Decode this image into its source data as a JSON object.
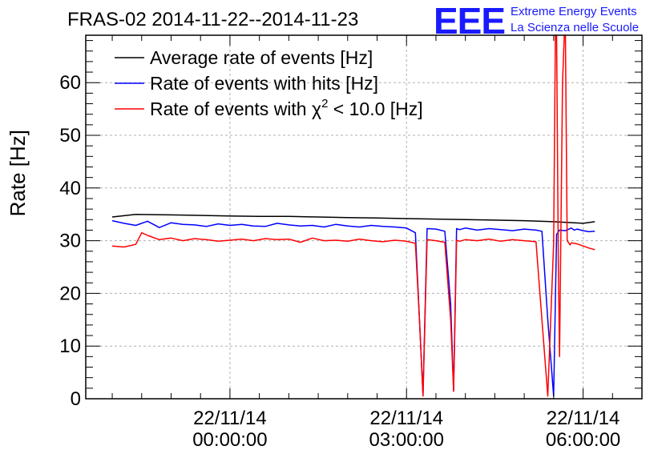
{
  "chart_data": {
    "type": "line",
    "title": "FRAS-02 2014-11-22--2014-11-23",
    "ylabel": "Rate [Hz]",
    "xlabel": "",
    "ylim": [
      0,
      69
    ],
    "yticks": [
      0,
      10,
      20,
      30,
      40,
      50,
      60
    ],
    "xlim": [
      -2.45,
      7.0
    ],
    "x_units": "hours relative to 22/11/14 00:00:00",
    "xticks": [
      {
        "x": 0,
        "line1": "22/11/14",
        "line2": "00:00:00"
      },
      {
        "x": 3,
        "line1": "22/11/14",
        "line2": "03:00:00"
      },
      {
        "x": 6,
        "line1": "22/11/14",
        "line2": "06:00:00"
      }
    ],
    "grid": true,
    "legend_position": "top-left",
    "brand": {
      "logo": "EEE",
      "line1": "Extreme Energy Events",
      "line2": "La Scienza nelle Scuole"
    },
    "series": [
      {
        "name": "Average rate of events [Hz]",
        "legend_html": "Average rate of events [Hz]",
        "color": "#000000",
        "x": [
          -2.0,
          -1.6,
          -1.0,
          -0.5,
          0.0,
          0.5,
          1.0,
          1.5,
          2.0,
          2.5,
          3.0,
          3.5,
          4.0,
          4.5,
          5.0,
          5.5,
          6.0,
          6.2
        ],
        "values": [
          34.5,
          35.0,
          34.9,
          34.8,
          34.7,
          34.6,
          34.6,
          34.5,
          34.4,
          34.3,
          34.2,
          34.1,
          34.0,
          33.9,
          33.8,
          33.6,
          33.3,
          33.6
        ]
      },
      {
        "name": "Rate of events with hits [Hz]",
        "legend_html": "Rate of events with hits [Hz]",
        "color": "#0000ff",
        "x": [
          -2.0,
          -1.8,
          -1.6,
          -1.4,
          -1.2,
          -1.0,
          -0.8,
          -0.6,
          -0.4,
          -0.2,
          0.0,
          0.2,
          0.4,
          0.6,
          0.8,
          1.0,
          1.2,
          1.4,
          1.6,
          1.8,
          2.0,
          2.2,
          2.4,
          2.6,
          2.8,
          3.0,
          3.15,
          3.22,
          3.28,
          3.35,
          3.5,
          3.65,
          3.75,
          3.8,
          3.85,
          3.9,
          4.0,
          4.2,
          4.4,
          4.6,
          4.8,
          5.0,
          5.2,
          5.3,
          5.4,
          5.5,
          5.55,
          5.6,
          5.7,
          5.8,
          5.85,
          5.9,
          6.0,
          6.1,
          6.2
        ],
        "values": [
          33.8,
          33.3,
          32.9,
          33.7,
          32.5,
          33.4,
          33.1,
          33.0,
          32.7,
          33.2,
          32.9,
          33.1,
          32.8,
          32.7,
          33.3,
          33.0,
          32.8,
          32.9,
          32.6,
          33.1,
          32.8,
          32.6,
          32.9,
          32.7,
          32.6,
          32.4,
          31.5,
          15.0,
          0.7,
          32.3,
          32.2,
          31.8,
          18.0,
          1.6,
          32.3,
          32.1,
          32.4,
          32.0,
          32.3,
          32.1,
          31.9,
          32.2,
          32.0,
          31.8,
          15.0,
          0.5,
          31.2,
          32.0,
          31.9,
          32.4,
          32.0,
          32.2,
          31.9,
          31.7,
          31.8
        ]
      },
      {
        "name": "Rate of events with χ2 < 10.0 [Hz]",
        "legend_html": "Rate of events with χ<tspan font-size=\"15\" dy=\"-10\">2</tspan><tspan dy=\"10\"> &lt; 10.0 [Hz]</tspan>",
        "color": "#ff0000",
        "x": [
          -2.0,
          -1.8,
          -1.6,
          -1.5,
          -1.4,
          -1.2,
          -1.0,
          -0.8,
          -0.6,
          -0.4,
          -0.2,
          0.0,
          0.2,
          0.4,
          0.6,
          0.8,
          1.0,
          1.2,
          1.4,
          1.6,
          1.8,
          2.0,
          2.2,
          2.4,
          2.6,
          2.8,
          3.0,
          3.15,
          3.22,
          3.28,
          3.35,
          3.5,
          3.65,
          3.75,
          3.8,
          3.85,
          3.9,
          4.0,
          4.2,
          4.4,
          4.6,
          4.8,
          5.0,
          5.2,
          5.3,
          5.4,
          5.5,
          5.53,
          5.55,
          5.58,
          5.6,
          5.65,
          5.68,
          5.7,
          5.73,
          5.78,
          5.8,
          5.9,
          6.0,
          6.1,
          6.2
        ],
        "values": [
          29.0,
          28.8,
          29.3,
          31.5,
          31.0,
          30.2,
          30.5,
          30.0,
          30.4,
          30.2,
          29.9,
          30.1,
          30.3,
          30.0,
          30.4,
          30.2,
          30.3,
          29.7,
          30.5,
          30.0,
          30.1,
          29.9,
          30.3,
          30.0,
          29.8,
          30.1,
          29.9,
          29.5,
          15.0,
          0.5,
          30.2,
          30.0,
          29.7,
          15.0,
          1.4,
          30.1,
          29.9,
          30.2,
          30.0,
          30.3,
          29.9,
          30.2,
          30.0,
          29.8,
          15.0,
          0.5,
          29.5,
          69.5,
          69.5,
          25.0,
          8.0,
          60.0,
          69.5,
          69.5,
          30.0,
          29.2,
          29.6,
          29.4,
          29.0,
          28.6,
          28.3
        ]
      }
    ]
  }
}
